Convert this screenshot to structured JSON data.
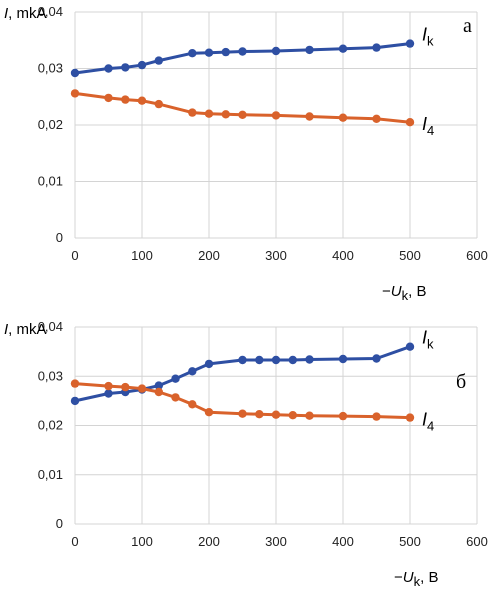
{
  "chart_data": [
    {
      "panel": "а",
      "type": "line",
      "ylabel_symbol": "I",
      "ylabel_unit": ", mkA",
      "xlabel_prefix": "−",
      "xlabel_symbol": "U",
      "xlabel_sub": "k",
      "xlabel_unit": ", В",
      "xlim": [
        0,
        600
      ],
      "ylim": [
        0,
        0.04
      ],
      "xticks": [
        "0",
        "100",
        "200",
        "300",
        "400",
        "500",
        "600"
      ],
      "yticks": [
        "0",
        "0,01",
        "0,02",
        "0,03",
        "0,04"
      ],
      "grid": true,
      "series": [
        {
          "name_symbol": "I",
          "name_sub": "k",
          "color": "#2e4fa3",
          "x": [
            0,
            50,
            75,
            100,
            125,
            175,
            200,
            225,
            250,
            300,
            350,
            400,
            450,
            500
          ],
          "y": [
            0.0292,
            0.03,
            0.0302,
            0.0306,
            0.0314,
            0.0327,
            0.0328,
            0.0329,
            0.033,
            0.0331,
            0.0333,
            0.0335,
            0.0337,
            0.0344
          ]
        },
        {
          "name_symbol": "I",
          "name_sub": "4",
          "color": "#d9622b",
          "x": [
            0,
            50,
            75,
            100,
            125,
            175,
            200,
            225,
            250,
            300,
            350,
            400,
            450,
            500
          ],
          "y": [
            0.0256,
            0.0248,
            0.0245,
            0.0243,
            0.0237,
            0.0222,
            0.022,
            0.0219,
            0.0218,
            0.0217,
            0.0215,
            0.0213,
            0.0211,
            0.0205
          ]
        }
      ]
    },
    {
      "panel": "б",
      "type": "line",
      "ylabel_symbol": "I",
      "ylabel_unit": ", mkA",
      "xlabel_prefix": "−",
      "xlabel_symbol": "U",
      "xlabel_sub": "k",
      "xlabel_unit": ", В",
      "xlim": [
        0,
        600
      ],
      "ylim": [
        0,
        0.04
      ],
      "xticks": [
        "0",
        "100",
        "200",
        "300",
        "400",
        "500",
        "600"
      ],
      "yticks": [
        "0",
        "0,01",
        "0,02",
        "0,03",
        "0,04"
      ],
      "grid": true,
      "series": [
        {
          "name_symbol": "I",
          "name_sub": "k",
          "color": "#2e4fa3",
          "x": [
            0,
            50,
            75,
            100,
            125,
            150,
            175,
            200,
            250,
            275,
            300,
            325,
            350,
            400,
            450,
            500
          ],
          "y": [
            0.025,
            0.0265,
            0.0268,
            0.0273,
            0.0281,
            0.0295,
            0.031,
            0.0325,
            0.0333,
            0.0333,
            0.0333,
            0.0333,
            0.0334,
            0.0335,
            0.0336,
            0.036
          ]
        },
        {
          "name_symbol": "I",
          "name_sub": "4",
          "color": "#d9622b",
          "x": [
            0,
            50,
            75,
            100,
            125,
            150,
            175,
            200,
            250,
            275,
            300,
            325,
            350,
            400,
            450,
            500
          ],
          "y": [
            0.0285,
            0.028,
            0.0278,
            0.0275,
            0.0268,
            0.0257,
            0.0243,
            0.0227,
            0.0224,
            0.0223,
            0.0222,
            0.0221,
            0.022,
            0.0219,
            0.0218,
            0.0216
          ]
        }
      ]
    }
  ]
}
